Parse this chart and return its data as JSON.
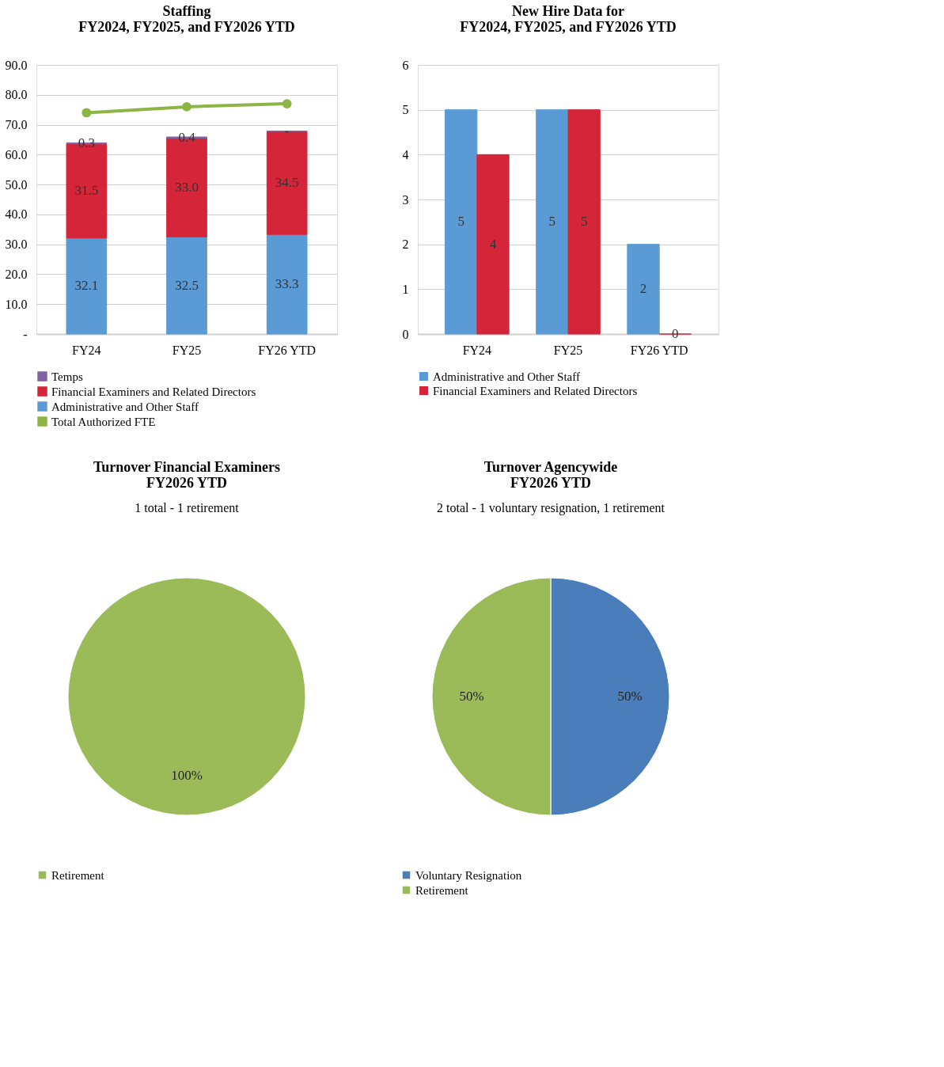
{
  "chart_data": [
    {
      "type": "bar",
      "title": "Staffing\nFY2024, FY2025, and FY2026 YTD",
      "categories": [
        "FY24",
        "FY25",
        "FY26 YTD"
      ],
      "stacked": true,
      "ylim": [
        0,
        90
      ],
      "yticks": [
        {
          "value": 0,
          "label": "-"
        },
        {
          "value": 10,
          "label": "10.0"
        },
        {
          "value": 20,
          "label": "20.0"
        },
        {
          "value": 30,
          "label": "30.0"
        },
        {
          "value": 40,
          "label": "40.0"
        },
        {
          "value": 50,
          "label": "50.0"
        },
        {
          "value": 60,
          "label": "60.0"
        },
        {
          "value": 70,
          "label": "70.0"
        },
        {
          "value": 80,
          "label": "80.0"
        },
        {
          "value": 90,
          "label": "90.0"
        }
      ],
      "grid": "y",
      "legend": "bottom",
      "series": [
        {
          "name": "Administrative and Other Staff",
          "color": "#5b9bd5",
          "values": [
            32.1,
            32.5,
            33.3
          ],
          "value_labels": [
            "32.1",
            "32.5",
            "33.3"
          ]
        },
        {
          "name": "Financial Examiners and Related Directors",
          "color": "#d42638",
          "values": [
            31.5,
            33.0,
            34.5
          ],
          "value_labels": [
            "31.5",
            "33.0",
            "34.5"
          ]
        },
        {
          "name": "Temps",
          "color": "#8064a2",
          "values": [
            0.3,
            0.4,
            0
          ],
          "value_labels": [
            "0.3",
            "0.4",
            "-"
          ]
        },
        {
          "name": "Total Authorized FTE",
          "type": "line",
          "color": "#8db543",
          "marker": "circle",
          "values": [
            74,
            76,
            77
          ]
        }
      ]
    },
    {
      "type": "bar",
      "title": "New Hire Data for\nFY2024, FY2025, and FY2026 YTD",
      "categories": [
        "FY24",
        "FY25",
        "FY26 YTD"
      ],
      "ylim": [
        0,
        6
      ],
      "yticks": [
        0,
        1,
        2,
        3,
        4,
        5,
        6
      ],
      "grid": "y",
      "legend": "bottom",
      "data_labels": true,
      "series": [
        {
          "name": "Administrative and Other Staff",
          "color": "#5b9bd5",
          "values": [
            5,
            5,
            2
          ]
        },
        {
          "name": "Financial Examiners and Related Directors",
          "color": "#d42638",
          "values": [
            4,
            5,
            0
          ]
        }
      ]
    },
    {
      "type": "pie",
      "title": "Turnover Financial Examiners\nFY2026 YTD",
      "subtitle": "1 total - 1 retirement",
      "categories": [
        "Retirement"
      ],
      "values": [
        100
      ],
      "colors": [
        "#9bbb59"
      ],
      "value_labels": [
        "100%"
      ],
      "legend": "bottom"
    },
    {
      "type": "pie",
      "title": "Turnover Agencywide\nFY2026 YTD",
      "subtitle": "2 total - 1 voluntary resignation, 1 retirement",
      "categories": [
        "Voluntary Resignation",
        "Retirement"
      ],
      "values": [
        50,
        50
      ],
      "colors": [
        "#4a7ebb",
        "#9bbb59"
      ],
      "value_labels": [
        "50%",
        "50%"
      ],
      "legend": "bottom"
    }
  ]
}
